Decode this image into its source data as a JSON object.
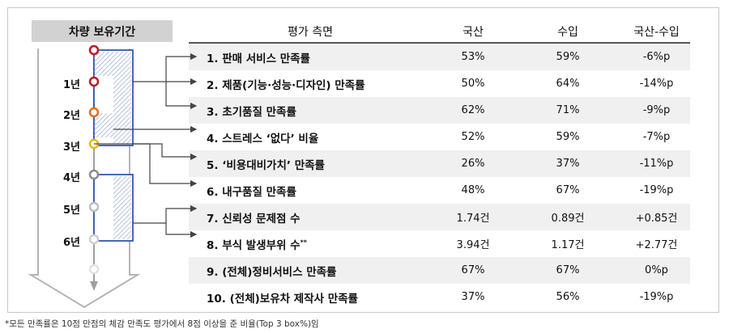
{
  "left_title": "차량 보유기간",
  "headers": {
    "aspect": "평가 측면",
    "domestic": "국산",
    "imported": "수입",
    "diff": "국산-수입"
  },
  "years": [
    "1년",
    "2년",
    "3년",
    "4년",
    "5년",
    "6년"
  ],
  "rows": [
    {
      "label": "1.  판매 서비스 만족률",
      "domestic": "53%",
      "imported": "59%",
      "diff": "-6%p"
    },
    {
      "label": "2.  제품(기능·성능·디자인) 만족률",
      "domestic": "50%",
      "imported": "64%",
      "diff": "-14%p"
    },
    {
      "label": "3.  초기품질 만족률",
      "domestic": "62%",
      "imported": "71%",
      "diff": "-9%p"
    },
    {
      "label": "4.  스트레스 ‘없다’ 비율",
      "domestic": "52%",
      "imported": "59%",
      "diff": "-7%p"
    },
    {
      "label": "5.  ‘비용대비가치’ 만족률",
      "domestic": "26%",
      "imported": "37%",
      "diff": "-11%p"
    },
    {
      "label": "6.  내구품질 만족률",
      "domestic": "48%",
      "imported": "67%",
      "diff": "-19%p"
    },
    {
      "label": "7.  신뢰성 문제점 수",
      "domestic": "1.74건",
      "imported": "0.89건",
      "diff": "+0.85건"
    },
    {
      "label": "8.  부식 발생부위 수",
      "sup": "**",
      "domestic": "3.94건",
      "imported": "1.17건",
      "diff": "+2.77건"
    },
    {
      "label": "9.  (전체)정비서비스 만족률",
      "domestic": "67%",
      "imported": "67%",
      "diff": "0%p"
    },
    {
      "label": "10. (전체)보유차 제작사 만족률",
      "domestic": "37%",
      "imported": "56%",
      "diff": "-19%p"
    }
  ],
  "footnote": "*모든 만족률은 10점 만점의 체감 만족도 평가에서 8점 이상을 준 비율(Top 3 box%)임",
  "colors": {
    "dot_red": "#c0171f",
    "dot_orange": "#e36c1a",
    "dot_yellow": "#e8b710",
    "dot_gray": "#8c8c8c",
    "box_blue": "#2f5aa8",
    "hatch": "#9bb0d8",
    "shade": "#f0f0f0"
  }
}
